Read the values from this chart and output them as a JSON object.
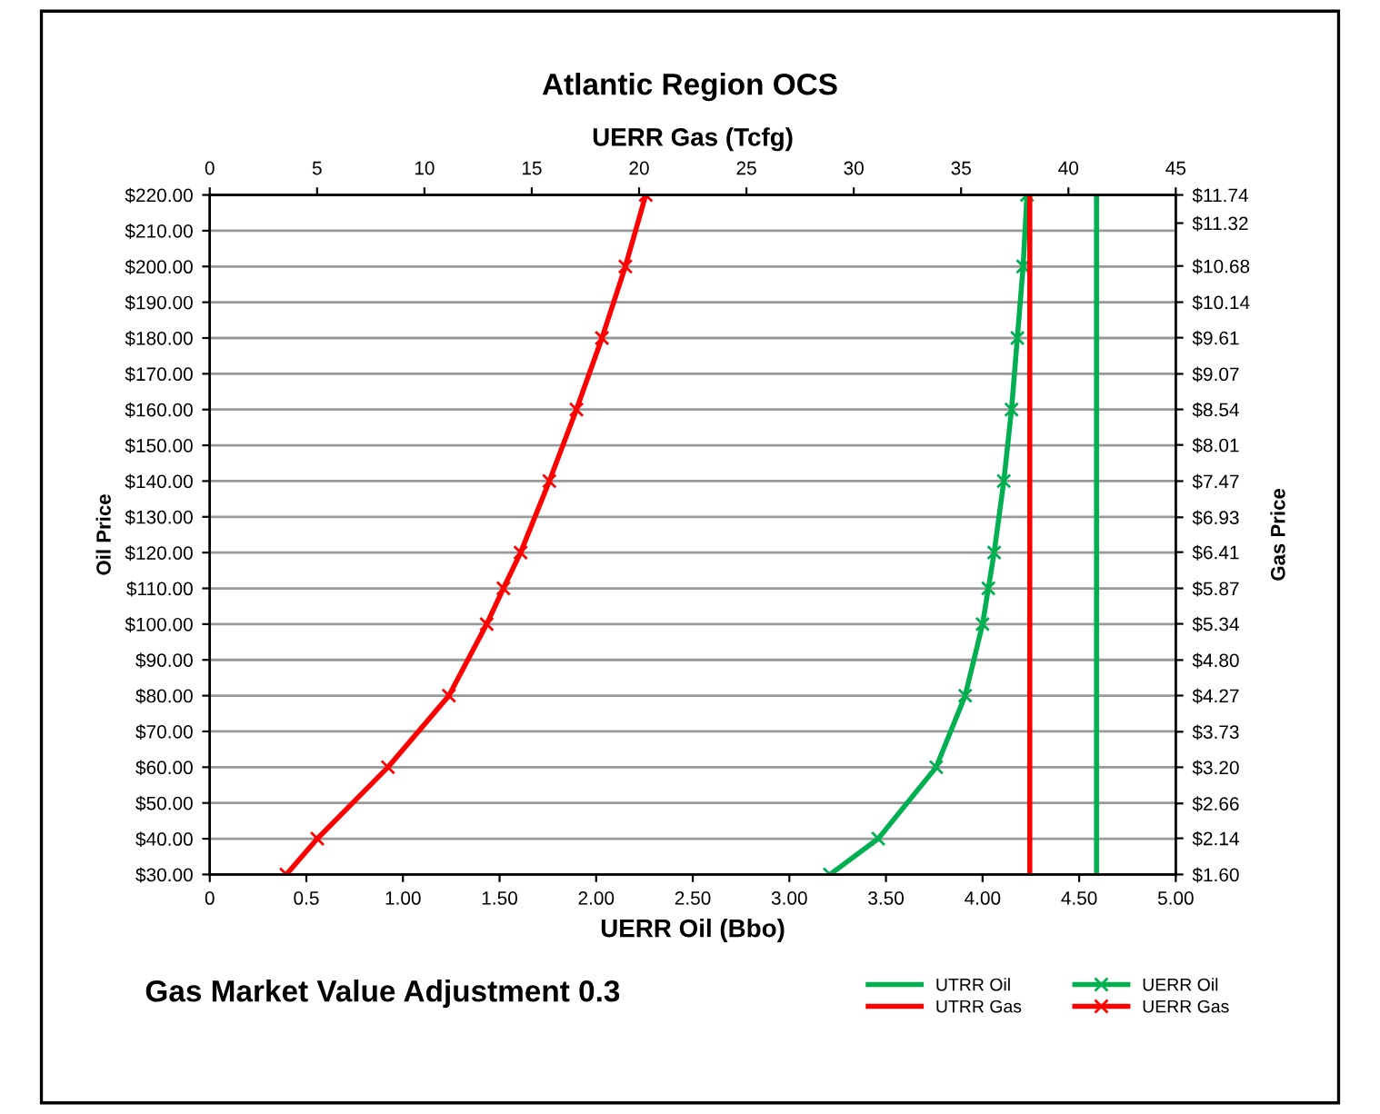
{
  "chart_data": {
    "type": "line",
    "title": "Atlantic Region OCS",
    "xlabel": "UERR Oil (Bbo)",
    "x2label": "UERR Gas (Tcfg)",
    "ylabel": "Oil Price",
    "y2label": "Gas Price",
    "annotations": [
      "Gas Market Value Adjustment 0.3"
    ],
    "xlim": [
      0,
      5
    ],
    "xticks": [
      0,
      {
        "value": 0.5,
        "label": "0.5"
      },
      {
        "value": 1,
        "label": "1.00"
      },
      {
        "value": 1.5,
        "label": "1.50"
      },
      {
        "value": 2,
        "label": "2.00"
      },
      {
        "value": 2.5,
        "label": "2.50"
      },
      {
        "value": 3,
        "label": "3.00"
      },
      {
        "value": 3.5,
        "label": "3.50"
      },
      {
        "value": 4,
        "label": "4.00"
      },
      {
        "value": 4.5,
        "label": "4.50"
      },
      {
        "value": 5,
        "label": "5.00"
      }
    ],
    "x2lim": [
      0,
      45
    ],
    "x2ticks": [
      0,
      5,
      10,
      15,
      20,
      25,
      30,
      35,
      40,
      45
    ],
    "ylim": [
      30,
      220
    ],
    "yticks": [
      {
        "value": 30,
        "label": "$30.00"
      },
      {
        "value": 40,
        "label": "$40.00"
      },
      {
        "value": 50,
        "label": "$50.00"
      },
      {
        "value": 60,
        "label": "$60.00"
      },
      {
        "value": 70,
        "label": "$70.00"
      },
      {
        "value": 80,
        "label": "$80.00"
      },
      {
        "value": 90,
        "label": "$90.00"
      },
      {
        "value": 100,
        "label": "$100.00"
      },
      {
        "value": 110,
        "label": "$110.00"
      },
      {
        "value": 120,
        "label": "$120.00"
      },
      {
        "value": 130,
        "label": "$130.00"
      },
      {
        "value": 140,
        "label": "$140.00"
      },
      {
        "value": 150,
        "label": "$150.00"
      },
      {
        "value": 160,
        "label": "$160.00"
      },
      {
        "value": 170,
        "label": "$170.00"
      },
      {
        "value": 180,
        "label": "$180.00"
      },
      {
        "value": 190,
        "label": "$190.00"
      },
      {
        "value": 200,
        "label": "$200.00"
      },
      {
        "value": 210,
        "label": "$210.00"
      },
      {
        "value": 220,
        "label": "$220.00"
      }
    ],
    "y2lim": [
      1.6,
      11.74
    ],
    "y2ticks": [
      {
        "value": 1.6,
        "label": "$1.60"
      },
      {
        "value": 2.14,
        "label": "$2.14"
      },
      {
        "value": 2.66,
        "label": "$2.66"
      },
      {
        "value": 3.2,
        "label": "$3.20"
      },
      {
        "value": 3.73,
        "label": "$3.73"
      },
      {
        "value": 4.27,
        "label": "$4.27"
      },
      {
        "value": 4.8,
        "label": "$4.80"
      },
      {
        "value": 5.34,
        "label": "$5.34"
      },
      {
        "value": 5.87,
        "label": "$5.87"
      },
      {
        "value": 6.41,
        "label": "$6.41"
      },
      {
        "value": 6.93,
        "label": "$6.93"
      },
      {
        "value": 7.47,
        "label": "$7.47"
      },
      {
        "value": 8.01,
        "label": "$8.01"
      },
      {
        "value": 8.54,
        "label": "$8.54"
      },
      {
        "value": 9.07,
        "label": "$9.07"
      },
      {
        "value": 9.61,
        "label": "$9.61"
      },
      {
        "value": 10.14,
        "label": "$10.14"
      },
      {
        "value": 10.68,
        "label": "$10.68"
      },
      {
        "value": 11.32,
        "label": "$11.32"
      },
      {
        "value": 11.74,
        "label": "$11.74"
      }
    ],
    "grid": "y",
    "legend": "bottom right",
    "line_style": "solid",
    "series": [
      {
        "name": "UTRR Oil",
        "color": "#00b050",
        "marker": "none",
        "x": [
          4.59,
          4.59
        ],
        "values": [
          30,
          220
        ]
      },
      {
        "name": "UTRR Gas",
        "color": "#ff0000",
        "marker": "none",
        "axis": "x2",
        "x": [
          38.2,
          38.2
        ],
        "values": [
          30,
          220
        ]
      },
      {
        "name": "UERR Oil",
        "color": "#00b050",
        "marker": "cross",
        "x": [
          3.21,
          3.46,
          3.76,
          3.91,
          4.0,
          4.03,
          4.06,
          4.11,
          4.15,
          4.18,
          4.21,
          4.23
        ],
        "values": [
          30,
          40,
          60,
          80,
          100,
          110,
          120,
          140,
          160,
          180,
          200,
          220
        ]
      },
      {
        "name": "UERR Gas",
        "color": "#ff0000",
        "marker": "cross",
        "axis": "x2",
        "x": [
          3.57,
          5.01,
          8.3,
          11.14,
          12.9,
          13.68,
          14.48,
          15.82,
          17.08,
          18.27,
          19.36,
          20.31
        ],
        "values": [
          30,
          40,
          60,
          80,
          100,
          110,
          120,
          140,
          160,
          180,
          200,
          220
        ]
      }
    ]
  }
}
